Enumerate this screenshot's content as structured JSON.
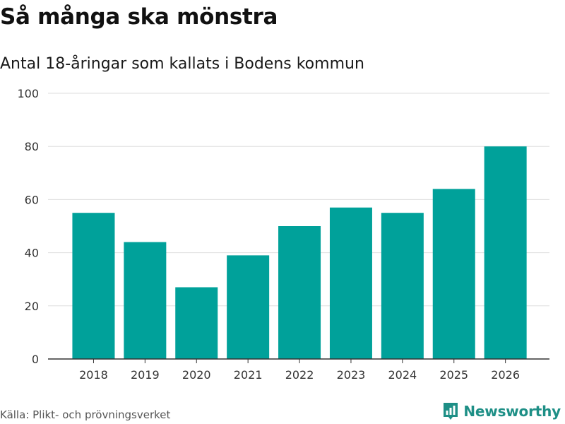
{
  "header": {
    "title": "Så många ska mönstra",
    "subtitle": "Antal 18-åringar som kallats i Bodens kommun"
  },
  "footer": {
    "source": "Källa: Plikt- och prövningsverket",
    "brand": "Newsworthy",
    "brand_icon": "bar-chart-logo-icon"
  },
  "colors": {
    "bar": "#00a19a",
    "brand": "#1e8f86",
    "grid": "#dddddd",
    "axis": "#333333",
    "text": "#333333"
  },
  "chart_data": {
    "type": "bar",
    "categories": [
      "2018",
      "2019",
      "2020",
      "2021",
      "2022",
      "2023",
      "2024",
      "2025",
      "2026"
    ],
    "values": [
      55,
      44,
      27,
      39,
      50,
      57,
      55,
      64,
      80
    ],
    "title": "Så många ska mönstra",
    "subtitle": "Antal 18-åringar som kallats i Bodens kommun",
    "xlabel": "",
    "ylabel": "",
    "ylim": [
      0,
      100
    ],
    "yticks": [
      0,
      20,
      40,
      60,
      80,
      100
    ],
    "ytick_labels": [
      "0",
      "20",
      "40",
      "60",
      "80",
      "100"
    ],
    "grid": true,
    "legend": "none"
  }
}
